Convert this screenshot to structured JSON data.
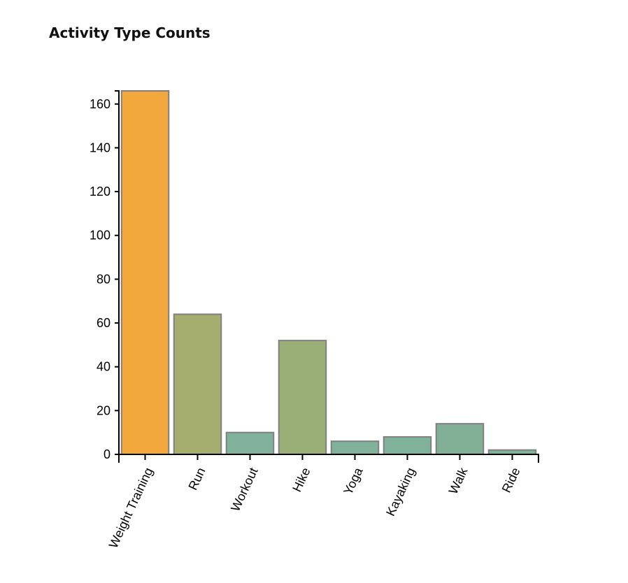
{
  "chart_data": {
    "type": "bar",
    "title": "Activity Type Counts",
    "xlabel": "",
    "ylabel": "",
    "categories": [
      "Weight Training",
      "Run",
      "Workout",
      "Hike",
      "Yoga",
      "Kayaking",
      "Walk",
      "Ride"
    ],
    "values": [
      166,
      64,
      10,
      52,
      6,
      8,
      14,
      2
    ],
    "colors": [
      "#f2a83c",
      "#a5ae6e",
      "#80b19a",
      "#9aae78",
      "#80b19a",
      "#80b19a",
      "#82b097",
      "#80b19a"
    ],
    "bar_stroke": "#808080",
    "ylim": [
      0,
      166
    ],
    "yticks": [
      0,
      20,
      40,
      60,
      80,
      100,
      120,
      140,
      160
    ],
    "grid": false,
    "legend": "none"
  }
}
